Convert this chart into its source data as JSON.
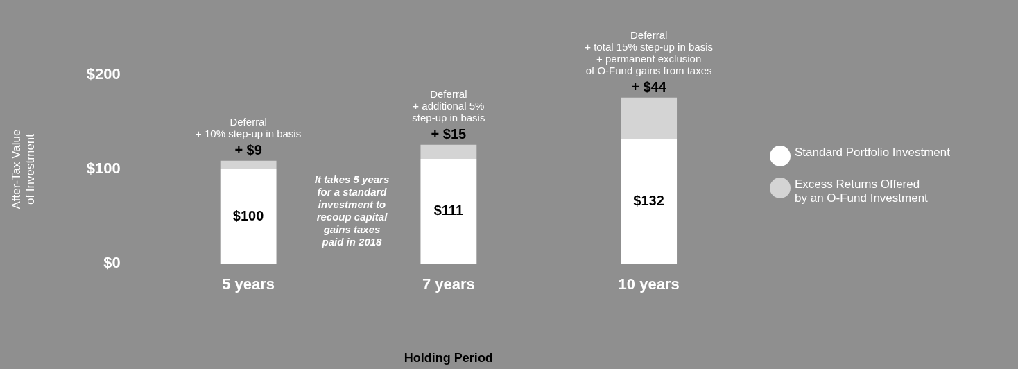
{
  "chart_data": {
    "type": "bar",
    "stacked": true,
    "xlabel": "Holding Period",
    "ylabel": "After-Tax Value\nof Investment",
    "categories": [
      "5 years",
      "7 years",
      "10 years"
    ],
    "series": [
      {
        "name": "Standard Portfolio Investment",
        "color": "#ffffff",
        "values": [
          100,
          111,
          132
        ],
        "value_labels": [
          "$100",
          "$111",
          "$132"
        ]
      },
      {
        "name": "Excess Returns Offered\nby an O-Fund Investment",
        "color": "#d4d4d4",
        "values": [
          9,
          15,
          44
        ],
        "value_labels": [
          "+ $9",
          "+ $15",
          "+ $44"
        ]
      }
    ],
    "ylim": [
      0,
      200
    ],
    "yticks": [
      {
        "value": 0,
        "label": "$0"
      },
      {
        "value": 100,
        "label": "$100"
      },
      {
        "value": 200,
        "label": "$200"
      }
    ],
    "grid": false,
    "legend": "right",
    "annotations": [
      {
        "text": "Deferral\n+ 10% step-up in basis",
        "x": "5 years",
        "y": 109
      },
      {
        "text": "Deferral\n+ additional 5%\nstep-up in basis",
        "x": "7 years",
        "y": 126
      },
      {
        "text": "Deferral\n+ total 15% step-up in basis\n+ permanent exclusion\nof O-Fund gains from taxes",
        "x": "10 years",
        "y": 176
      },
      "It takes 5 years\nfor a standard\ninvestment to\nrecoup capital\ngains taxes\npaid in 2018"
    ]
  }
}
